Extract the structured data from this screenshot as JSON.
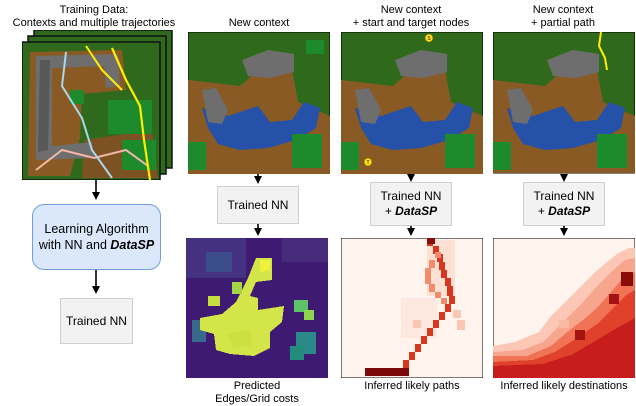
{
  "training": {
    "title_line1": "Training Data:",
    "title_line2": "Contexts and multiple trajectories"
  },
  "learning_box": {
    "line1": "Learning Algorithm",
    "line2_prefix": "with NN and ",
    "line2_emph": "DataSP"
  },
  "trained_nn_left": "Trained NN",
  "col1": {
    "title": "New context",
    "box_label": "Trained NN",
    "caption_line1": "Predicted",
    "caption_line2": "Edges/Grid costs"
  },
  "col2": {
    "title_line1": "New context",
    "title_line2": "+ start and target nodes",
    "box_line1": "Trained NN",
    "box_line2_prefix": "+ ",
    "box_line2_emph": "DataSP",
    "caption": "Inferred likely paths",
    "start_marker": "S",
    "target_marker": "T"
  },
  "col3": {
    "title_line1": "New context",
    "title_line2": "+ partial path",
    "box_line1": "Trained NN",
    "box_line2_prefix": "+ ",
    "box_line2_emph": "DataSP",
    "caption": "Inferred likely destinations"
  },
  "colors": {
    "grass": "#2e6b1a",
    "dirt": "#8a5a24",
    "water": "#2552a8",
    "rock": "#6b6b6b",
    "forest": "#1f7d2a",
    "box_blue": "#dbe8fb",
    "box_gray": "#f2f2f2",
    "cost_low": "#3b0f70",
    "cost_high": "#e4f04a",
    "path_red": "#c81d1d"
  }
}
